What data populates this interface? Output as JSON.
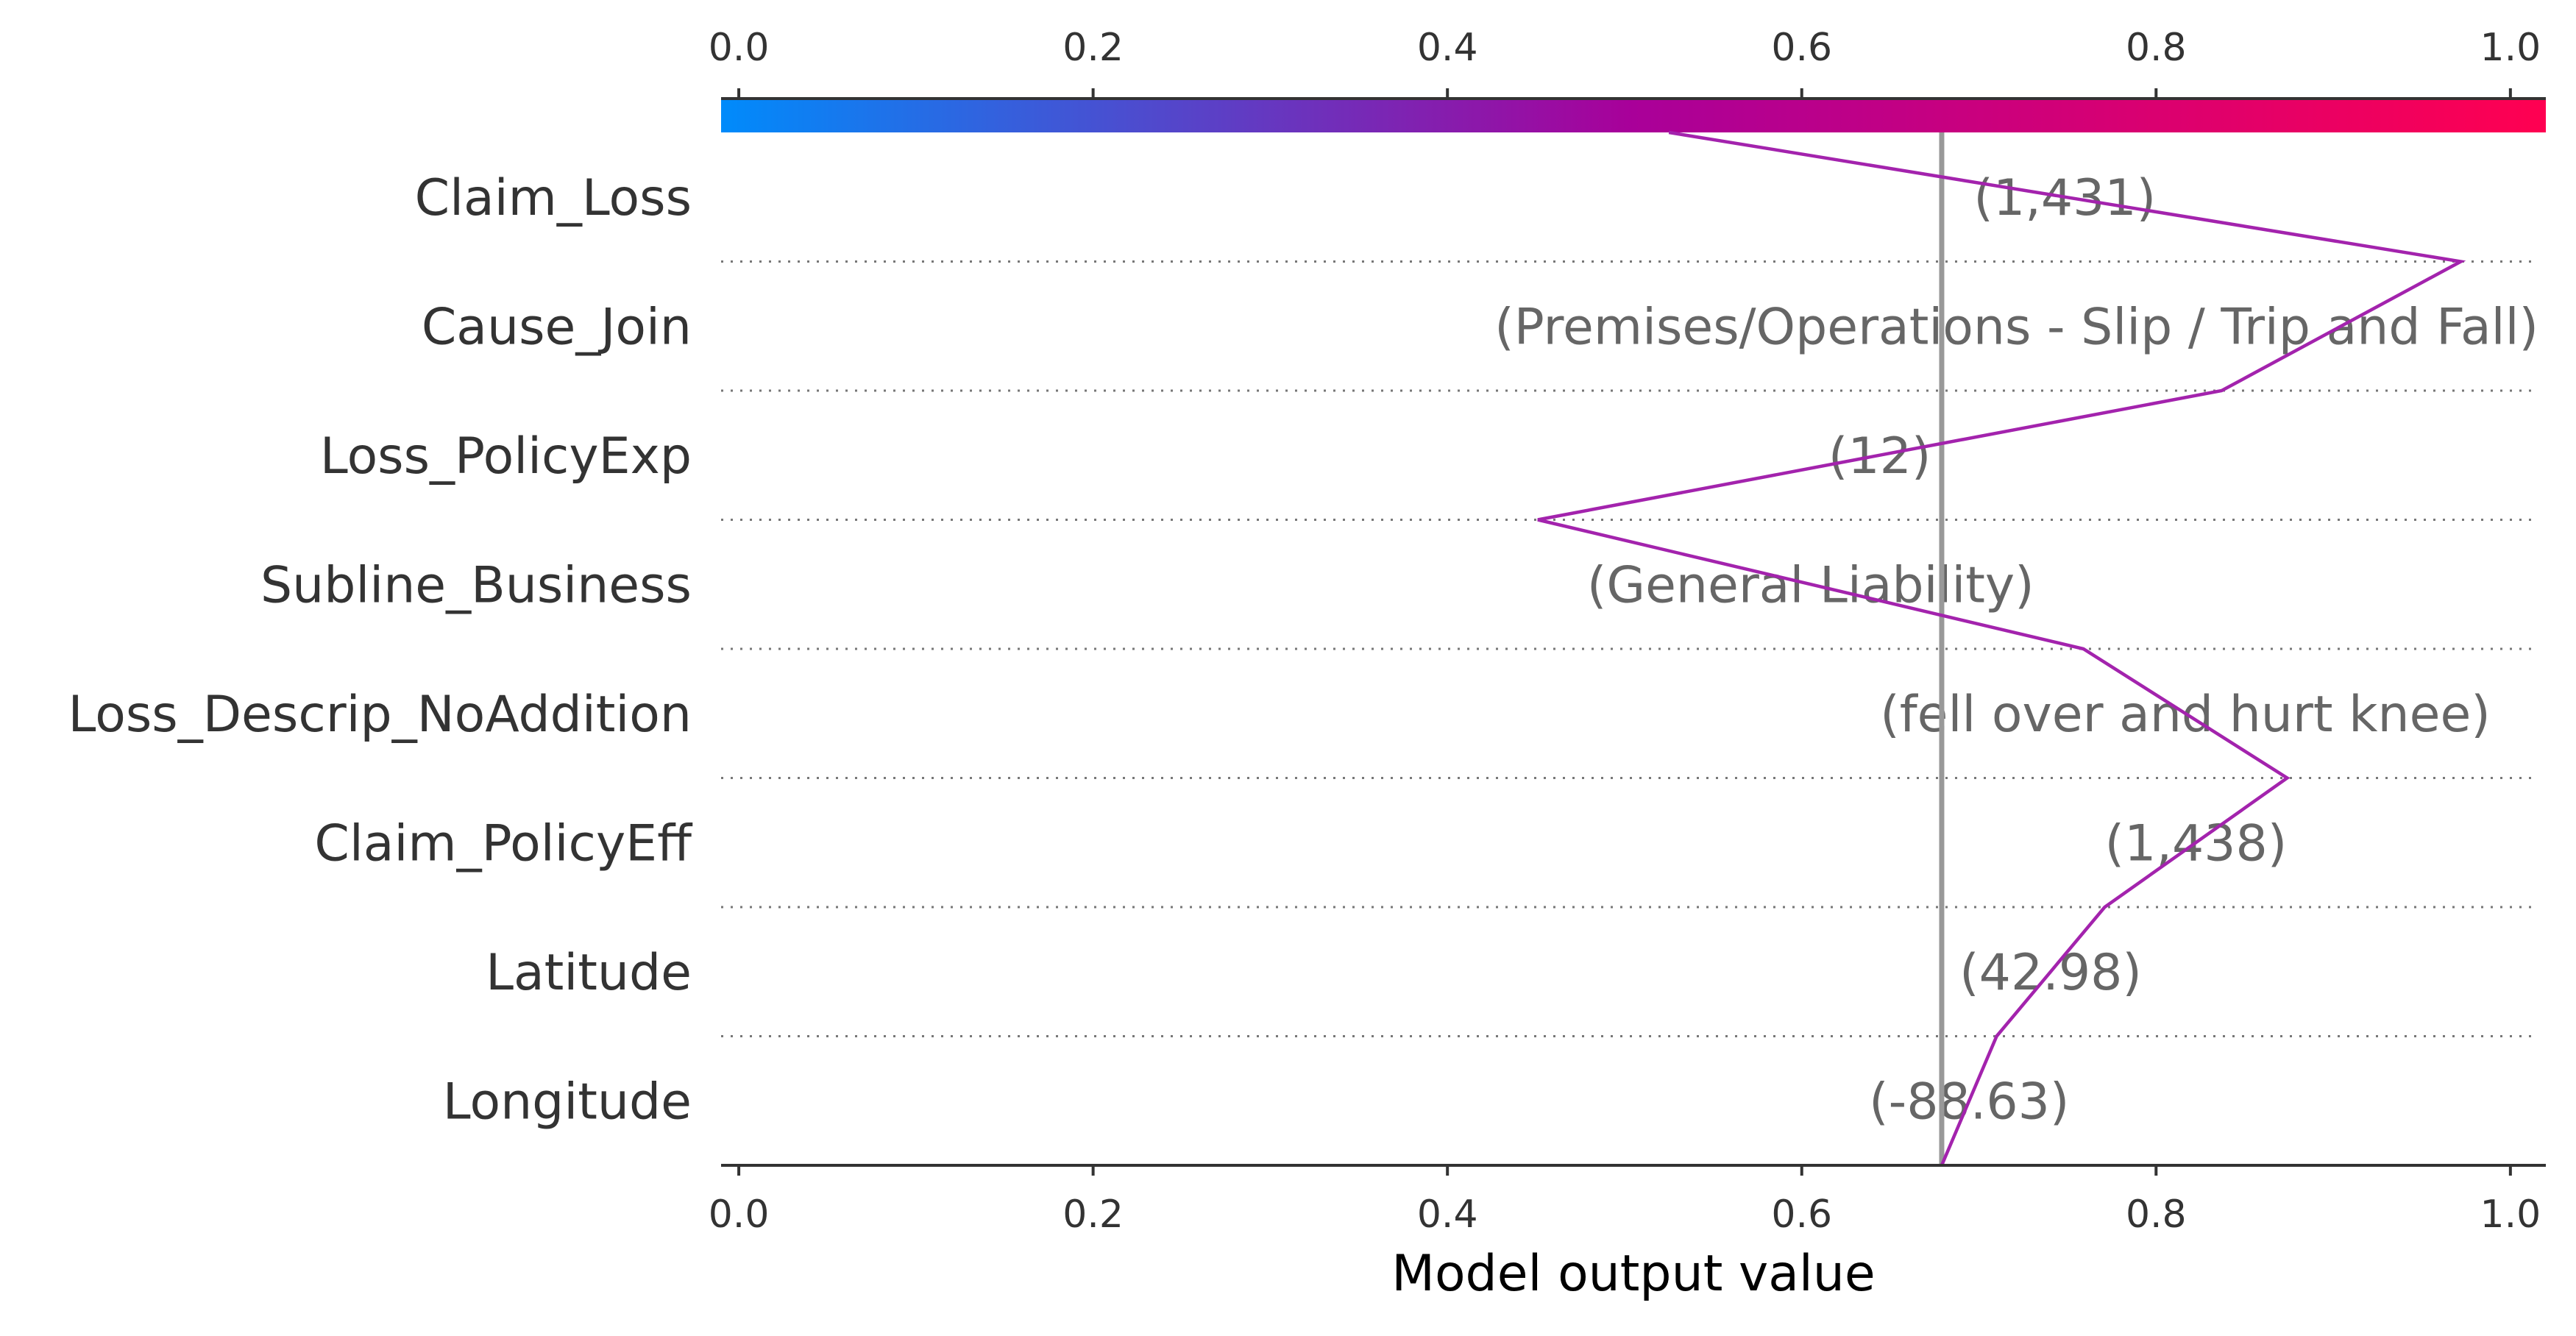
{
  "chart_data": {
    "type": "line",
    "chart_kind": "decision-plot",
    "xlabel": "Model output value",
    "xlim": [
      -0.01,
      1.02
    ],
    "xticks": [
      "0.0",
      "0.2",
      "0.4",
      "0.6",
      "0.8",
      "1.0"
    ],
    "tick_values": [
      0.0,
      0.2,
      0.4,
      0.6,
      0.8,
      1.0
    ],
    "base_value": 0.679,
    "colorbar": {
      "from": "#008bfb",
      "mid": "#a90099",
      "to": "#ff0051"
    },
    "line_color": "#a323ad",
    "features": [
      {
        "name": "Claim_Loss",
        "value_label": "(1,431)"
      },
      {
        "name": "Cause_Join",
        "value_label": "(Premises/Operations - Slip / Trip and Fall)"
      },
      {
        "name": "Loss_PolicyExp",
        "value_label": "(12)"
      },
      {
        "name": "Subline_Business",
        "value_label": "(General Liability)"
      },
      {
        "name": "Loss_Descrip_NoAddition",
        "value_label": "(fell over and hurt knee)"
      },
      {
        "name": "Claim_PolicyEff",
        "value_label": "(1,438)"
      },
      {
        "name": "Latitude",
        "value_label": "(42.98)"
      },
      {
        "name": "Longitude",
        "value_label": "(-88.63)"
      }
    ],
    "path_points": [
      0.525,
      0.972,
      0.837,
      0.451,
      0.759,
      0.874,
      0.771,
      0.71,
      0.679
    ],
    "grid": "dotted horizontal"
  }
}
